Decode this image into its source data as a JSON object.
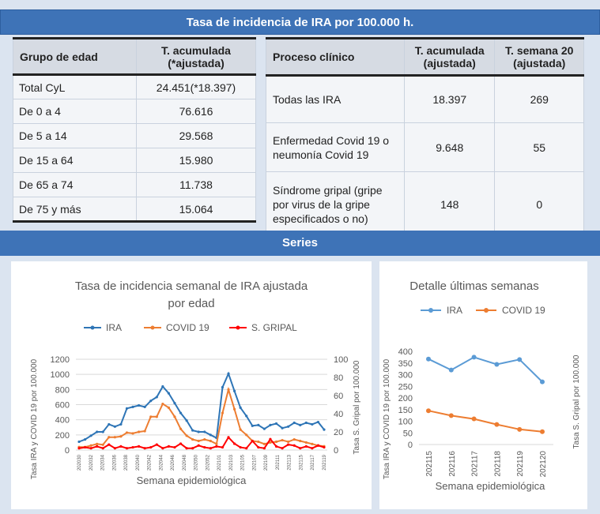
{
  "header": {
    "title": "Tasa de incidencia de IRA por 100.000 h."
  },
  "age_table": {
    "col1": "Grupo de edad",
    "col2_line1": "T. acumulada",
    "col2_line2": "(*ajustada)",
    "rows": [
      {
        "group": "Total CyL",
        "value": "24.451(*18.397)"
      },
      {
        "group": "De 0 a 4",
        "value": "76.616"
      },
      {
        "group": "De 5 a 14",
        "value": "29.568"
      },
      {
        "group": "De 15 a 64",
        "value": "15.980"
      },
      {
        "group": "De 65 a 74",
        "value": "11.738"
      },
      {
        "group": "De 75 y más",
        "value": "15.064"
      }
    ]
  },
  "clinical_table": {
    "col1": "Proceso clínico",
    "col2_line1": "T. acumulada",
    "col2_line2": "(ajustada)",
    "col3_line1": "T. semana 20",
    "col3_line2": "(ajustada)",
    "rows": [
      {
        "process_lines": [
          "Todas las IRA"
        ],
        "cumulative": "18.397",
        "week20": "269"
      },
      {
        "process_lines": [
          "Enfermedad Covid 19 o",
          "neumonía Covid 19"
        ],
        "cumulative": "9.648",
        "week20": "55"
      },
      {
        "process_lines": [
          "Síndrome gripal (gripe",
          "por virus de la gripe",
          "especificados o no)"
        ],
        "cumulative": "148",
        "week20": "0"
      }
    ]
  },
  "series_band": {
    "title": "Series"
  },
  "chart_data": [
    {
      "type": "line",
      "title_lines": [
        "Tasa de incidencia semanal  de IRA ajustada",
        "por edad"
      ],
      "xlabel": "Semana epidemiológica",
      "ylabel": "Tasa IRA y COVID 19 por 100.000",
      "y2label": "Tasa S. Gripal por 100.000",
      "ylim": [
        0,
        1200
      ],
      "yticks": [
        0,
        200,
        400,
        600,
        800,
        1000,
        1200
      ],
      "y2lim": [
        0,
        100
      ],
      "y2ticks": [
        0,
        20,
        40,
        60,
        80,
        100
      ],
      "grid": true,
      "legend": "top",
      "xtick_labels": [
        "202030",
        "202032",
        "202034",
        "202036",
        "202038",
        "202040",
        "202042",
        "202044",
        "202046",
        "202048",
        "202050",
        "202052",
        "202101",
        "202103",
        "202105",
        "202107",
        "202109",
        "202111",
        "202113",
        "202115",
        "202117",
        "202119"
      ],
      "series": [
        {
          "name": "IRA",
          "axis": "left",
          "color": "#2e75b6",
          "marker": true,
          "values": [
            110,
            140,
            190,
            240,
            240,
            340,
            310,
            340,
            550,
            570,
            590,
            570,
            650,
            700,
            840,
            750,
            620,
            490,
            390,
            260,
            240,
            240,
            200,
            160,
            830,
            1010,
            780,
            560,
            450,
            320,
            330,
            280,
            330,
            350,
            290,
            310,
            360,
            330,
            360,
            340,
            370,
            270
          ]
        },
        {
          "name": "COVID 19",
          "axis": "left",
          "color": "#ed7d31",
          "marker": true,
          "values": [
            40,
            40,
            60,
            80,
            70,
            170,
            170,
            180,
            230,
            220,
            240,
            250,
            440,
            440,
            610,
            560,
            440,
            280,
            190,
            140,
            120,
            140,
            120,
            80,
            490,
            800,
            540,
            270,
            200,
            120,
            110,
            80,
            100,
            110,
            130,
            110,
            140,
            120,
            100,
            80,
            60,
            50
          ]
        },
        {
          "name": "S. GRIPAL",
          "axis": "right",
          "color": "#ff0000",
          "marker": true,
          "values": [
            2,
            3,
            2,
            4,
            2,
            6,
            2,
            4,
            2,
            3,
            4,
            2,
            3,
            6,
            2,
            4,
            3,
            7,
            2,
            2,
            5,
            3,
            2,
            4,
            3,
            14,
            7,
            3,
            2,
            10,
            3,
            2,
            12,
            4,
            2,
            6,
            5,
            2,
            4,
            2,
            5,
            3
          ]
        }
      ]
    },
    {
      "type": "line",
      "title": "Detalle últimas semanas",
      "xlabel": "Semana epidemiológica",
      "ylabel": "Tasa IRA y COVID 19 por 100.000",
      "y2label": "Tasa S. Gripal por 100.000",
      "ylim": [
        0,
        400
      ],
      "yticks": [
        0,
        50,
        100,
        150,
        200,
        250,
        300,
        350,
        400
      ],
      "grid": false,
      "legend": "top",
      "categories": [
        "202115",
        "202116",
        "202117",
        "202118",
        "202119",
        "202120"
      ],
      "series": [
        {
          "name": "IRA",
          "color": "#5b9bd5",
          "values": [
            367,
            320,
            375,
            344,
            365,
            269
          ]
        },
        {
          "name": "COVID 19",
          "color": "#ed7d31",
          "values": [
            145,
            124,
            110,
            86,
            65,
            55
          ]
        }
      ]
    }
  ]
}
